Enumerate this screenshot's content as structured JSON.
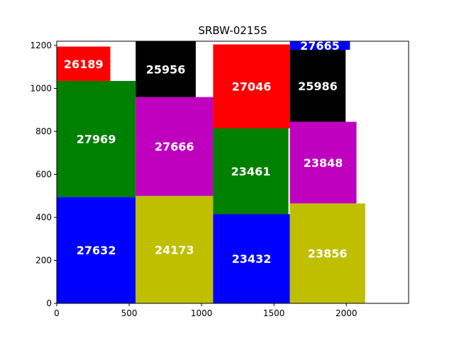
{
  "chart_data": {
    "type": "rectangle-packing",
    "title": "SRBW-0215S",
    "xlabel": "",
    "ylabel": "",
    "xlim": [
      0,
      2430
    ],
    "ylim": [
      0,
      1220
    ],
    "grid": false,
    "x_ticks": [
      0,
      500,
      1000,
      1500,
      2000
    ],
    "y_ticks": [
      0,
      200,
      400,
      600,
      800,
      1000,
      1200
    ],
    "rectangles": [
      {
        "label": "27632",
        "x": 0,
        "y": 0,
        "w": 545,
        "h": 495,
        "color": "#0000ff"
      },
      {
        "label": "27969",
        "x": 0,
        "y": 495,
        "w": 545,
        "h": 540,
        "color": "#008000"
      },
      {
        "label": "26189",
        "x": 0,
        "y": 1035,
        "w": 370,
        "h": 160,
        "color": "#ff0000"
      },
      {
        "label": "24173",
        "x": 545,
        "y": 0,
        "w": 535,
        "h": 500,
        "color": "#bfbf00"
      },
      {
        "label": "27666",
        "x": 545,
        "y": 500,
        "w": 535,
        "h": 460,
        "color": "#bf00bf"
      },
      {
        "label": "25956",
        "x": 545,
        "y": 960,
        "w": 415,
        "h": 260,
        "color": "#000000"
      },
      {
        "label": "23432",
        "x": 1080,
        "y": 0,
        "w": 530,
        "h": 415,
        "color": "#0000ff"
      },
      {
        "label": "23461",
        "x": 1080,
        "y": 415,
        "w": 520,
        "h": 400,
        "color": "#008000"
      },
      {
        "label": "27046",
        "x": 1080,
        "y": 815,
        "w": 530,
        "h": 390,
        "color": "#ff0000"
      },
      {
        "label": "23856",
        "x": 1610,
        "y": 0,
        "w": 520,
        "h": 465,
        "color": "#bfbf00"
      },
      {
        "label": "23848",
        "x": 1610,
        "y": 465,
        "w": 460,
        "h": 380,
        "color": "#bf00bf"
      },
      {
        "label": "25986",
        "x": 1610,
        "y": 845,
        "w": 385,
        "h": 335,
        "color": "#000000"
      },
      {
        "label": "27665",
        "x": 1610,
        "y": 1180,
        "w": 415,
        "h": 40,
        "color": "#0000ff"
      }
    ]
  }
}
